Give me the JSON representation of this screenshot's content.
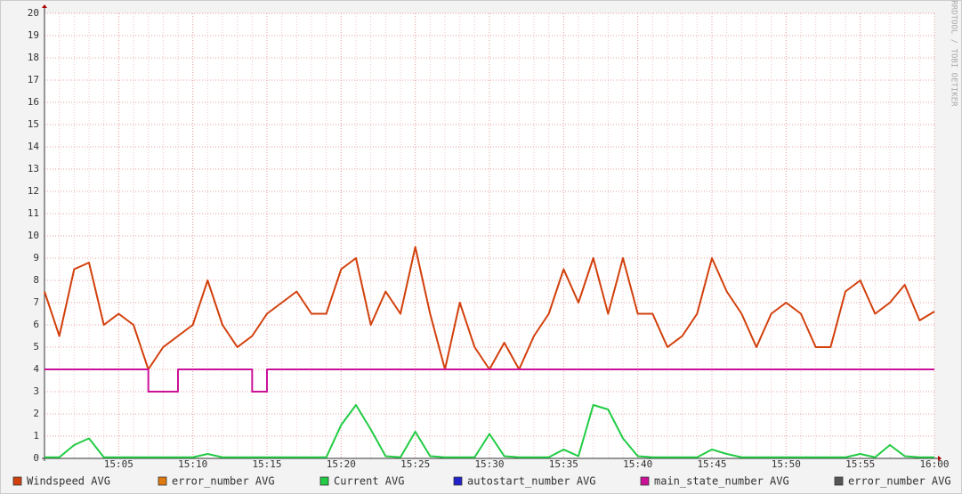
{
  "chart_data": {
    "type": "line",
    "watermark": "RRDTOOL / TOBI OETIKER",
    "x": [
      "15:00",
      "15:01",
      "15:02",
      "15:03",
      "15:04",
      "15:05",
      "15:06",
      "15:07",
      "15:08",
      "15:09",
      "15:10",
      "15:11",
      "15:12",
      "15:13",
      "15:14",
      "15:15",
      "15:16",
      "15:17",
      "15:18",
      "15:19",
      "15:20",
      "15:21",
      "15:22",
      "15:23",
      "15:24",
      "15:25",
      "15:26",
      "15:27",
      "15:28",
      "15:29",
      "15:30",
      "15:31",
      "15:32",
      "15:33",
      "15:34",
      "15:35",
      "15:36",
      "15:37",
      "15:38",
      "15:39",
      "15:40",
      "15:41",
      "15:42",
      "15:43",
      "15:44",
      "15:45",
      "15:46",
      "15:47",
      "15:48",
      "15:49",
      "15:50",
      "15:51",
      "15:52",
      "15:53",
      "15:54",
      "15:55",
      "15:56",
      "15:57",
      "15:58",
      "15:59",
      "16:00"
    ],
    "xlim": [
      "15:00",
      "16:00"
    ],
    "xticks": [
      "15:05",
      "15:10",
      "15:15",
      "15:20",
      "15:25",
      "15:30",
      "15:35",
      "15:40",
      "15:45",
      "15:50",
      "15:55",
      "16:00"
    ],
    "ylim": [
      0,
      20
    ],
    "yticks": [
      0,
      1,
      2,
      3,
      4,
      5,
      6,
      7,
      8,
      9,
      10,
      11,
      12,
      13,
      14,
      15,
      16,
      17,
      18,
      19,
      20
    ],
    "grid": true,
    "legend": "bottom",
    "series": [
      {
        "name": "Windspeed AVG",
        "color": "#d2400c",
        "values": [
          7.5,
          5.5,
          8.5,
          8.8,
          6.0,
          6.5,
          6.0,
          4.0,
          5.0,
          5.5,
          6.0,
          8.0,
          6.0,
          5.0,
          5.5,
          6.5,
          7.0,
          7.5,
          6.5,
          6.5,
          8.5,
          9.0,
          6.0,
          7.5,
          6.5,
          9.5,
          6.5,
          4.0,
          7.0,
          5.0,
          4.0,
          5.2,
          4.0,
          5.5,
          6.5,
          8.5,
          7.0,
          9.0,
          6.5,
          9.0,
          6.5,
          6.5,
          5.0,
          5.5,
          6.5,
          9.0,
          7.5,
          6.5,
          5.0,
          6.5,
          7.0,
          6.5,
          5.0,
          5.0,
          7.5,
          8.0,
          6.5,
          7.0,
          7.8,
          6.2,
          6.6
        ]
      },
      {
        "name": "error_number AVG",
        "color": "#e07a10",
        "values": [
          null,
          null,
          null,
          null,
          null,
          null,
          null,
          null,
          null,
          null,
          null,
          null,
          null,
          null,
          null,
          null,
          null,
          null,
          null,
          null,
          null,
          null,
          null,
          null,
          null,
          null,
          null,
          null,
          null,
          null,
          null,
          null,
          null,
          null,
          null,
          null,
          null,
          null,
          null,
          null,
          null,
          null,
          null,
          null,
          null,
          null,
          null,
          null,
          null,
          null,
          null,
          null,
          null,
          null,
          null,
          null,
          null,
          null,
          null,
          null,
          null
        ]
      },
      {
        "name": "Current AVG",
        "color": "#22cc44",
        "values": [
          0.05,
          0.05,
          0.6,
          0.9,
          0.05,
          0.05,
          0.05,
          0.05,
          0.05,
          0.05,
          0.05,
          0.2,
          0.05,
          0.05,
          0.05,
          0.05,
          0.05,
          0.05,
          0.05,
          0.05,
          1.5,
          2.4,
          1.3,
          0.1,
          0.05,
          1.2,
          0.1,
          0.05,
          0.05,
          0.05,
          1.1,
          0.1,
          0.05,
          0.05,
          0.05,
          0.4,
          0.1,
          2.4,
          2.2,
          0.9,
          0.1,
          0.05,
          0.05,
          0.05,
          0.05,
          0.4,
          0.2,
          0.05,
          0.05,
          0.05,
          0.05,
          0.05,
          0.05,
          0.05,
          0.05,
          0.2,
          0.05,
          0.6,
          0.1,
          0.05,
          0.05
        ]
      },
      {
        "name": "autostart_number AVG",
        "color": "#2222cc",
        "values": [
          null,
          null,
          null,
          null,
          null,
          null,
          null,
          null,
          null,
          null,
          null,
          null,
          null,
          null,
          null,
          null,
          null,
          null,
          null,
          null,
          null,
          null,
          null,
          null,
          null,
          null,
          null,
          null,
          null,
          null,
          null,
          null,
          null,
          null,
          null,
          null,
          null,
          null,
          null,
          null,
          null,
          null,
          null,
          null,
          null,
          null,
          null,
          null,
          null,
          null,
          null,
          null,
          null,
          null,
          null,
          null,
          null,
          null,
          null,
          null,
          null
        ]
      },
      {
        "name": "main_state_number AVG",
        "color": "#cc1199",
        "step": true,
        "values": [
          4,
          4,
          4,
          4,
          4,
          4,
          4,
          3,
          3,
          4,
          4,
          4,
          4,
          4,
          3,
          4,
          4,
          4,
          4,
          4,
          4,
          4,
          4,
          4,
          4,
          4,
          4,
          4,
          4,
          4,
          4,
          4,
          4,
          4,
          4,
          4,
          4,
          4,
          4,
          4,
          4,
          4,
          4,
          4,
          4,
          4,
          4,
          4,
          4,
          4,
          4,
          4,
          4,
          4,
          4,
          4,
          4,
          4,
          4,
          4,
          4
        ]
      },
      {
        "name": "error_number AVG",
        "color": "#555555",
        "values": [
          null,
          null,
          null,
          null,
          null,
          null,
          null,
          null,
          null,
          null,
          null,
          null,
          null,
          null,
          null,
          null,
          null,
          null,
          null,
          null,
          null,
          null,
          null,
          null,
          null,
          null,
          null,
          null,
          null,
          null,
          null,
          null,
          null,
          null,
          null,
          null,
          null,
          null,
          null,
          null,
          null,
          null,
          null,
          null,
          null,
          null,
          null,
          null,
          null,
          null,
          null,
          null,
          null,
          null,
          null,
          null,
          null,
          null,
          null,
          null,
          null
        ]
      }
    ]
  }
}
